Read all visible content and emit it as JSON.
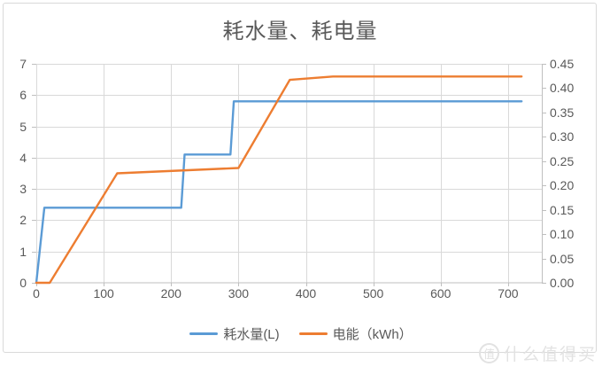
{
  "chart_data": {
    "type": "line",
    "title": "耗水量、耗电量",
    "grid": true,
    "legend_position": "bottom",
    "x_axis": {
      "min": 0,
      "max": 750,
      "ticks": [
        0,
        100,
        200,
        300,
        400,
        500,
        600,
        700
      ]
    },
    "y_axis_left": {
      "min": 0,
      "max": 7,
      "ticks": [
        0,
        1,
        2,
        3,
        4,
        5,
        6,
        7
      ]
    },
    "y_axis_right": {
      "min": 0,
      "max": 0.45,
      "ticks": [
        0,
        0.05,
        0.1,
        0.15,
        0.2,
        0.25,
        0.3,
        0.35,
        0.4,
        0.45
      ],
      "tick_labels": [
        "0.00",
        "0.05",
        "0.10",
        "0.15",
        "0.20",
        "0.25",
        "0.30",
        "0.35",
        "0.40",
        "0.45"
      ]
    },
    "series": [
      {
        "key": "water",
        "name": "耗水量(L)",
        "axis": "left",
        "color": "#5B9BD5",
        "points": [
          [
            0,
            0
          ],
          [
            12,
            2.4
          ],
          [
            215,
            2.4
          ],
          [
            220,
            4.1
          ],
          [
            288,
            4.1
          ],
          [
            293,
            5.8
          ],
          [
            720,
            5.8
          ]
        ]
      },
      {
        "key": "energy",
        "name": "电能（kWh）",
        "axis": "right",
        "color": "#ED7D31",
        "points": [
          [
            0,
            0
          ],
          [
            20,
            0
          ],
          [
            120,
            0.225
          ],
          [
            300,
            0.236
          ],
          [
            376,
            0.417
          ],
          [
            440,
            0.424
          ],
          [
            720,
            0.424
          ]
        ]
      }
    ]
  },
  "watermark": {
    "logo_char": "值",
    "text": "什么值得买"
  },
  "colors": {
    "text": "#595959",
    "grid": "#D9D9D9",
    "axis": "#BFBFBF",
    "frame_border": "#D9D9D9",
    "background": "#FFFFFF",
    "watermark": "#E2E2E2",
    "water_series": "#5B9BD5",
    "energy_series": "#ED7D31"
  }
}
